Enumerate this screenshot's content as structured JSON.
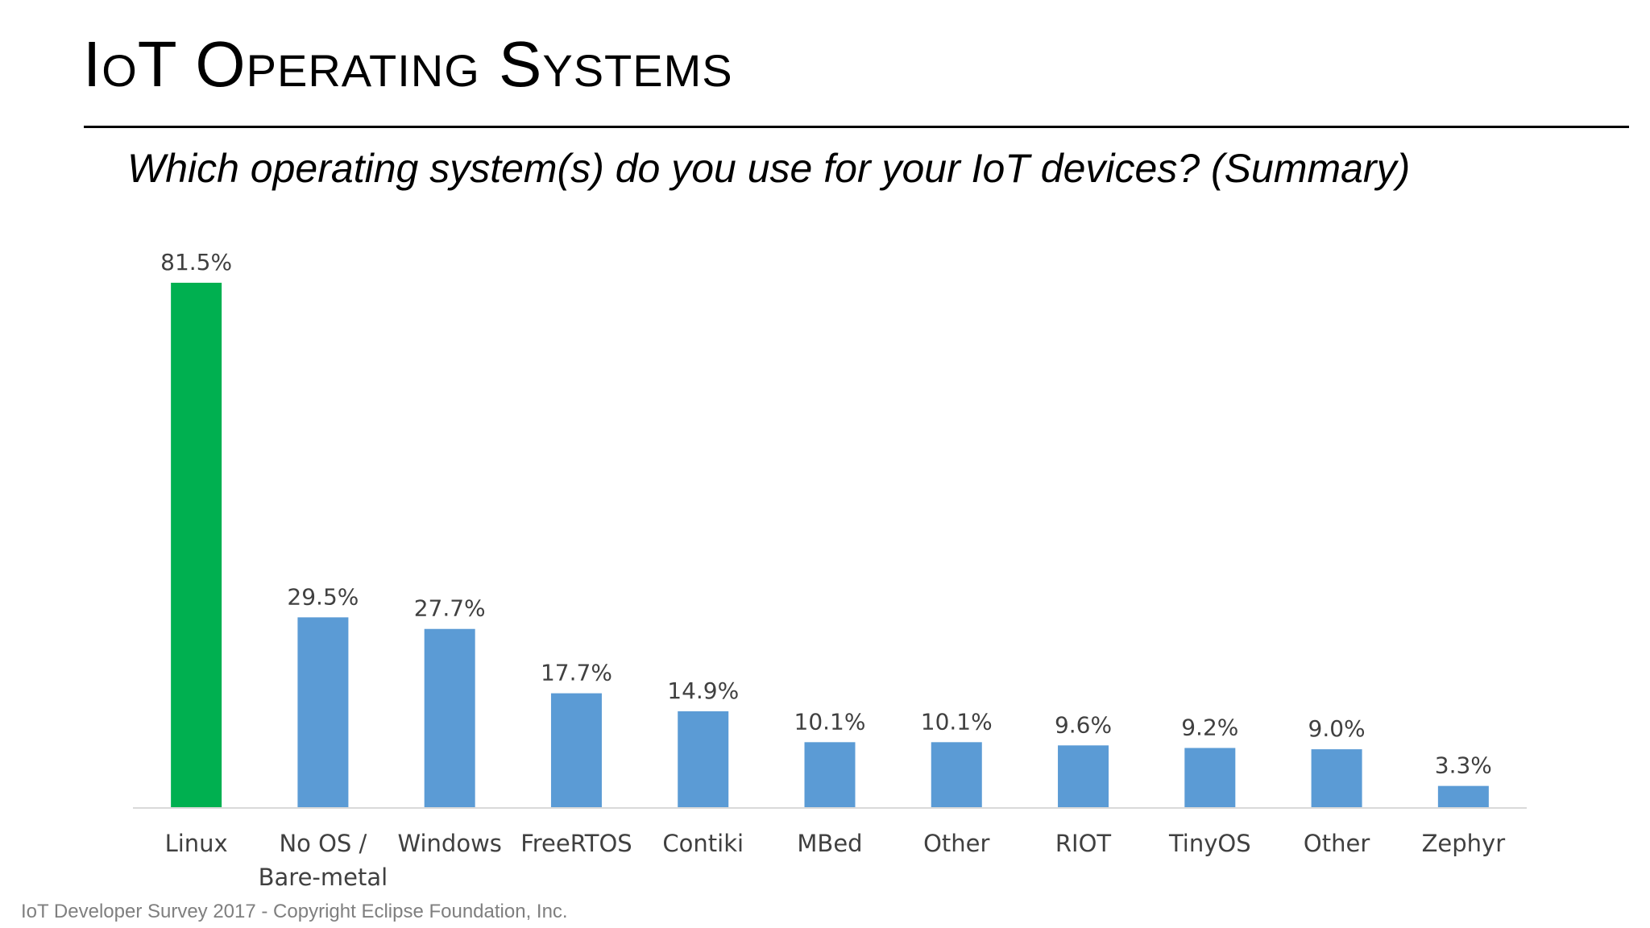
{
  "slide": {
    "title": "IoT Operating Systems",
    "question": "Which operating system(s) do you use for your IoT devices? (Summary)",
    "footer": "IoT Developer Survey 2017 - Copyright Eclipse Foundation, Inc."
  },
  "colors": {
    "highlight": "#00b050",
    "bar": "#5b9bd5",
    "axis": "#d9d9d9",
    "label": "#404040"
  },
  "chart_data": {
    "type": "bar",
    "title": "",
    "xlabel": "",
    "ylabel": "",
    "ylim": [
      0,
      85
    ],
    "grid": false,
    "legend": "none",
    "categories": [
      "Linux",
      "No OS / Bare-metal",
      "Windows",
      "FreeRTOS",
      "Contiki",
      "MBed",
      "Other",
      "RIOT",
      "TinyOS",
      "Other",
      "Zephyr"
    ],
    "category_lines": [
      [
        "Linux"
      ],
      [
        "No OS /",
        "Bare-metal"
      ],
      [
        "Windows"
      ],
      [
        "FreeRTOS"
      ],
      [
        "Contiki"
      ],
      [
        "MBed"
      ],
      [
        "Other"
      ],
      [
        "RIOT"
      ],
      [
        "TinyOS"
      ],
      [
        "Other"
      ],
      [
        "Zephyr"
      ]
    ],
    "values": [
      81.5,
      29.5,
      27.7,
      17.7,
      14.9,
      10.1,
      10.1,
      9.6,
      9.2,
      9.0,
      3.3
    ],
    "data_labels": [
      "81.5%",
      "29.5%",
      "27.7%",
      "17.7%",
      "14.9%",
      "10.1%",
      "10.1%",
      "9.6%",
      "9.2%",
      "9.0%",
      "3.3%"
    ],
    "highlight_index": 0
  }
}
